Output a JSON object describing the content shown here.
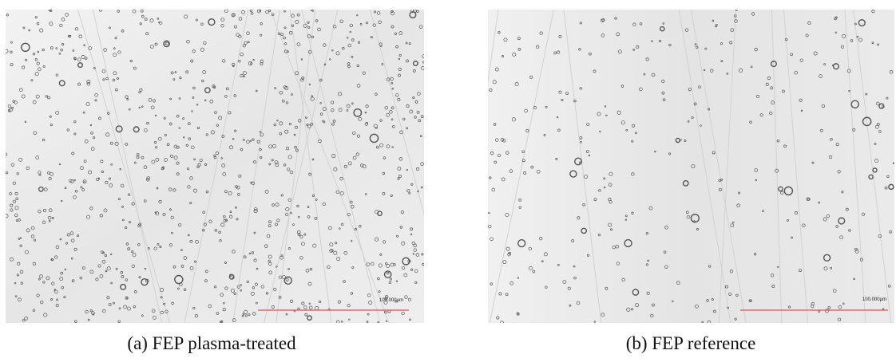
{
  "figure": {
    "panels": [
      {
        "caption": "(a) FEP plasma-treated",
        "scale_label": "100.000µm"
      },
      {
        "caption": "(b) FEP reference",
        "scale_label": "100.000µm"
      }
    ]
  }
}
